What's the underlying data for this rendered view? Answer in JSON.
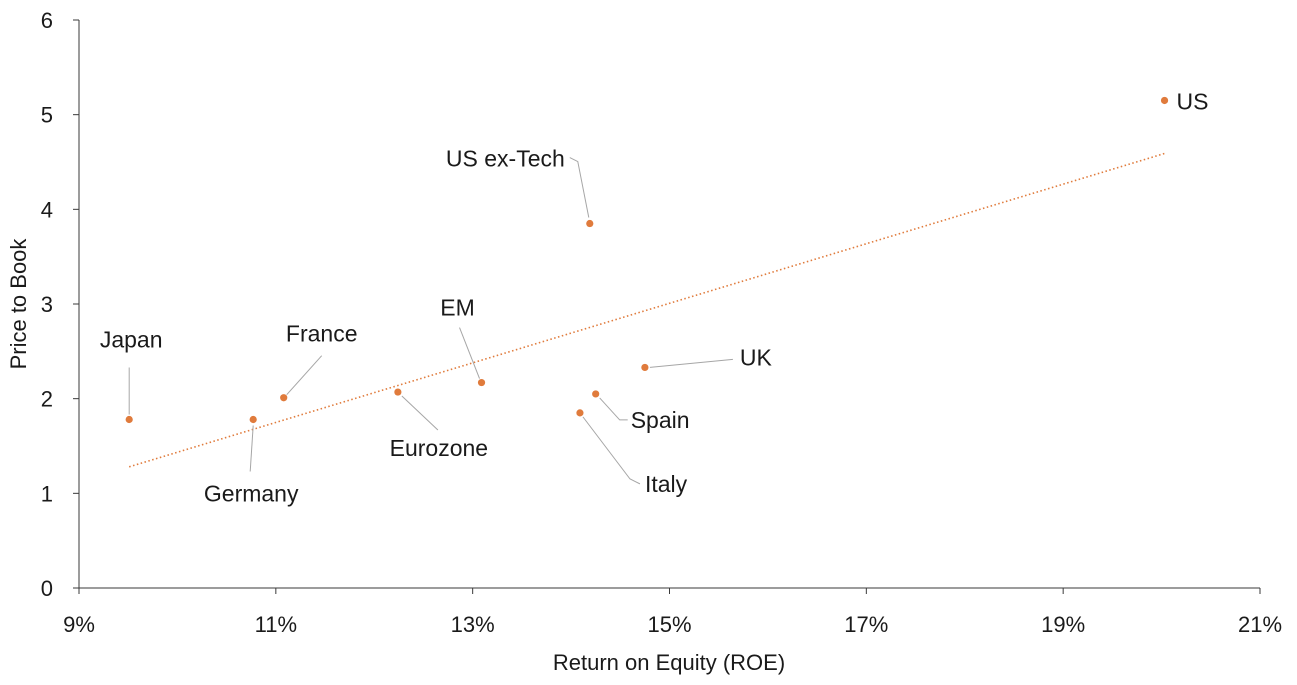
{
  "chart_data": {
    "type": "scatter",
    "title": "",
    "xlabel": "Return on Equity (ROE)",
    "ylabel": "Price to Book",
    "xlim": [
      0.09,
      0.21
    ],
    "ylim": [
      0,
      6
    ],
    "x_ticks": [
      0.09,
      0.11,
      0.13,
      0.15,
      0.17,
      0.19,
      0.21
    ],
    "x_tick_labels": [
      "9%",
      "11%",
      "13%",
      "15%",
      "17%",
      "19%",
      "21%"
    ],
    "y_ticks": [
      0,
      1,
      2,
      3,
      4,
      5,
      6
    ],
    "y_tick_labels": [
      "0",
      "1",
      "2",
      "3",
      "4",
      "5",
      "6"
    ],
    "grid": false,
    "legend": "none",
    "point_color": "#e07b3c",
    "trendline_color": "#e07b3c",
    "points": [
      {
        "label": "Japan",
        "x": 0.0951,
        "y": 1.78
      },
      {
        "label": "Germany",
        "x": 0.1077,
        "y": 1.78
      },
      {
        "label": "France",
        "x": 0.1108,
        "y": 2.01
      },
      {
        "label": "Eurozone",
        "x": 0.1224,
        "y": 2.07
      },
      {
        "label": "EM",
        "x": 0.1309,
        "y": 2.17
      },
      {
        "label": "US ex-Tech",
        "x": 0.1419,
        "y": 3.85
      },
      {
        "label": "Italy",
        "x": 0.1409,
        "y": 1.85
      },
      {
        "label": "Spain",
        "x": 0.1425,
        "y": 2.05
      },
      {
        "label": "UK",
        "x": 0.1475,
        "y": 2.33
      },
      {
        "label": "US",
        "x": 0.2003,
        "y": 5.15
      }
    ],
    "trendline": {
      "x": [
        0.0951,
        0.2003
      ],
      "y": [
        1.28,
        4.59
      ]
    }
  }
}
